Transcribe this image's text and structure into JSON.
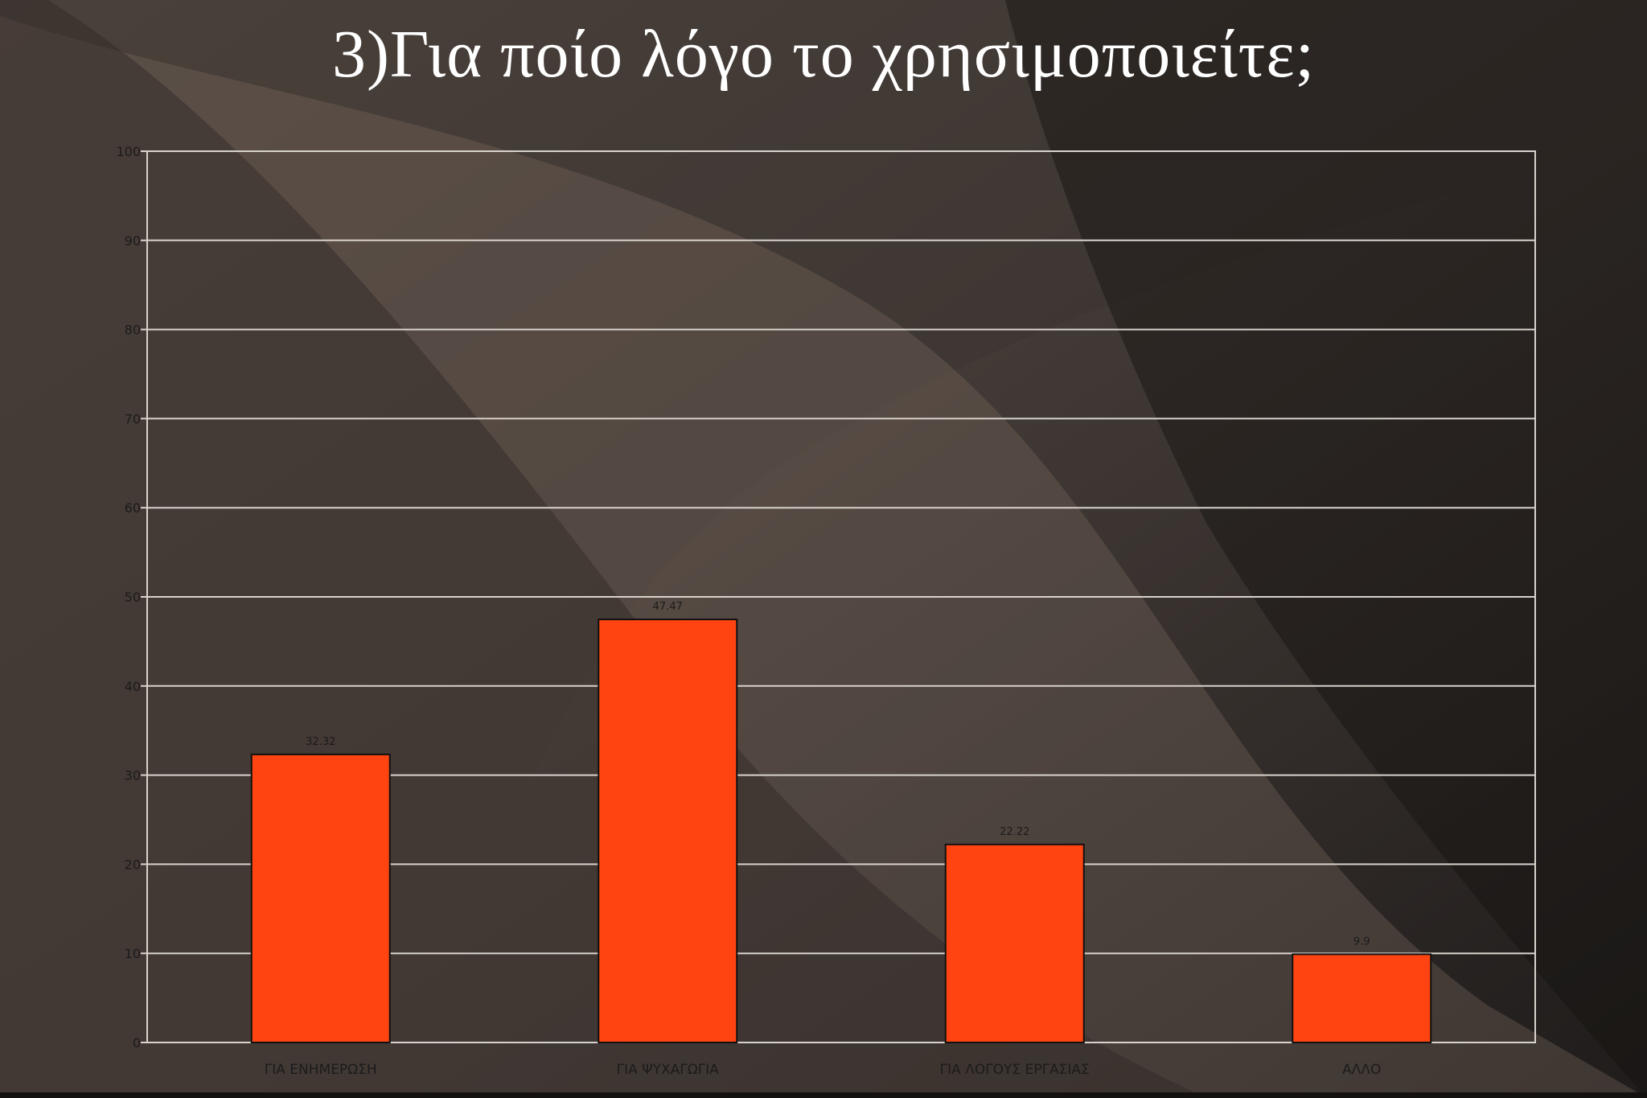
{
  "slide": {
    "title": "3)Για ποίο λόγο το χρησιμοποιείτε;"
  },
  "colors": {
    "bar_fill": "#ff4411",
    "bar_stroke": "#111111",
    "grid": "#d8d2cc",
    "background": "#2a2522"
  },
  "chart_data": {
    "type": "bar",
    "categories": [
      "ΓΙΑ ΕΝΗΜΕΡΩΣΗ",
      "ΓΙΑ ΨΥΧΑΓΩΓΙΑ",
      "ΓΙΑ ΛΟΓΟΥΣ ΕΡΓΑΣΙΑΣ",
      "ΑΛΛΟ"
    ],
    "values": [
      32.32,
      47.47,
      22.22,
      9.9
    ],
    "data_labels": [
      "32.32",
      "47.47",
      "22.22",
      "9.9"
    ],
    "ylim": [
      0,
      100
    ],
    "yticks": [
      0,
      10,
      20,
      30,
      40,
      50,
      60,
      70,
      80,
      90,
      100
    ],
    "grid": true,
    "legend": "none"
  }
}
